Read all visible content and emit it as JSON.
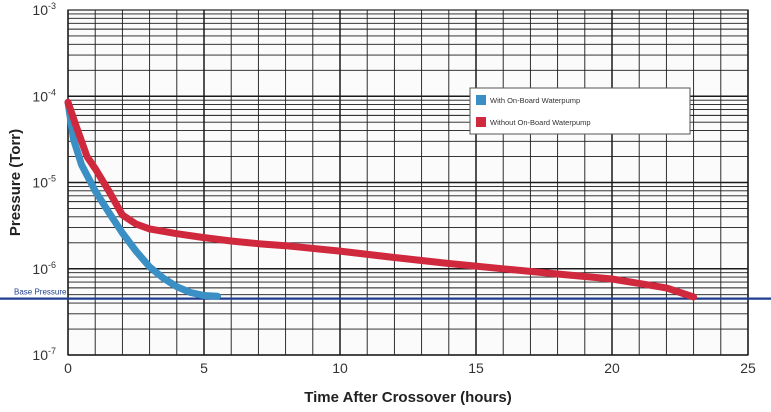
{
  "chart_data": {
    "type": "line",
    "title": "",
    "xlabel": "Time After Crossover (hours)",
    "ylabel": "Pressure (Torr)",
    "xlim": [
      0,
      25
    ],
    "ylim": [
      1e-07,
      0.001
    ],
    "y_scale": "log",
    "x_ticks": [
      0,
      5,
      10,
      15,
      20,
      25
    ],
    "y_ticks": [
      {
        "value": 0.001,
        "base": "10",
        "exp": "-3"
      },
      {
        "value": 0.0001,
        "base": "10",
        "exp": "-4"
      },
      {
        "value": 1e-05,
        "base": "10",
        "exp": "-5"
      },
      {
        "value": 1e-06,
        "base": "10",
        "exp": "-6"
      },
      {
        "value": 1e-07,
        "base": "10",
        "exp": "-7"
      }
    ],
    "grid": true,
    "legend_position": "top-right",
    "series": [
      {
        "name": "With On-Board Waterpump",
        "color": "#3a8fc4",
        "x": [
          0,
          0.2,
          0.5,
          1,
          1.5,
          2,
          2.5,
          3,
          3.5,
          4,
          4.5,
          5,
          5.5
        ],
        "y": [
          8.5e-05,
          3.2e-05,
          1.6e-05,
          8e-06,
          4.5e-06,
          2.6e-06,
          1.6e-06,
          1.05e-06,
          7.8e-07,
          6.2e-07,
          5.3e-07,
          4.9e-07,
          4.8e-07
        ]
      },
      {
        "name": "Without On-Board Waterpump",
        "color": "#d0283d",
        "x": [
          0,
          0.3,
          0.7,
          1,
          1.5,
          2,
          2.5,
          3,
          4,
          5,
          6,
          7,
          8,
          10,
          12,
          14,
          16,
          18,
          20,
          22,
          23
        ],
        "y": [
          8.5e-05,
          4.5e-05,
          2e-05,
          1.45e-05,
          8e-06,
          4.2e-06,
          3.3e-06,
          2.9e-06,
          2.55e-06,
          2.3e-06,
          2.1e-06,
          1.95e-06,
          1.85e-06,
          1.6e-06,
          1.35e-06,
          1.15e-06,
          1e-06,
          8.7e-07,
          7.6e-07,
          6e-07,
          4.7e-07
        ]
      }
    ],
    "annotations": [
      {
        "text": "Base Pressure",
        "y": 4.5e-07,
        "color": "#1f3e8f"
      }
    ]
  }
}
